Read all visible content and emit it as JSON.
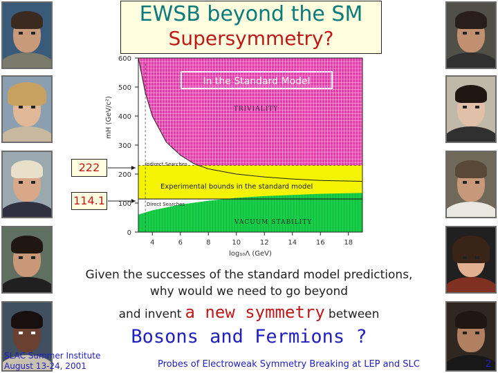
{
  "title": {
    "line1": "EWSB beyond the SM",
    "line2": "Supersymmetry?"
  },
  "chart_data": {
    "type": "area",
    "xlabel": "log₁₀Λ (GeV)",
    "ylabel": "mH (GeV/c²)",
    "xticks": [
      "4",
      "6",
      "8",
      "10",
      "12",
      "14",
      "16",
      "18"
    ],
    "yticks": [
      "0",
      "100",
      "200",
      "300",
      "400",
      "500",
      "600"
    ],
    "xlim": [
      3,
      19
    ],
    "ylim": [
      0,
      600
    ],
    "annotations": {
      "box": "In the Standard Model",
      "triviality": "TRIVIALITY",
      "indirect": "Indirect Searches",
      "experimental": "Experimental bounds in the standard model",
      "direct": "Direct Searches",
      "vacuum": "VACUUM STABILITY"
    },
    "triviality_bound": {
      "x": [
        3.0,
        3.5,
        4,
        5,
        6,
        7,
        8,
        10,
        12,
        14,
        16,
        19
      ],
      "y": [
        600,
        480,
        400,
        310,
        265,
        235,
        218,
        200,
        190,
        183,
        178,
        175
      ]
    },
    "vacuum_bound": {
      "x": [
        3,
        4,
        6,
        8,
        10,
        12,
        14,
        16,
        19
      ],
      "y": [
        60,
        75,
        95,
        108,
        118,
        124,
        128,
        132,
        135
      ]
    },
    "indirect_band": [
      170,
      230
    ],
    "direct_line": 114.1,
    "colors": {
      "triviality": "#e0189a",
      "experimental": "#f4f400",
      "vacuum": "#18d048",
      "dark": "#107030"
    }
  },
  "markers": {
    "upper": "222",
    "lower": "114.1"
  },
  "body": {
    "line1": "Given the successes of the standard model predictions,",
    "line2": "why would we need to go beyond",
    "line3_pre": "and invent",
    "line3_mid": "a new symmetry",
    "line3_post": "between",
    "line4": "Bosons and Fermions ?"
  },
  "footer": {
    "org": "SLAC Summer Institute",
    "date": "August 13-24, 2001",
    "center": "Probes of Electroweak Symmetry Breaking at LEP and SLC",
    "page": "2"
  }
}
